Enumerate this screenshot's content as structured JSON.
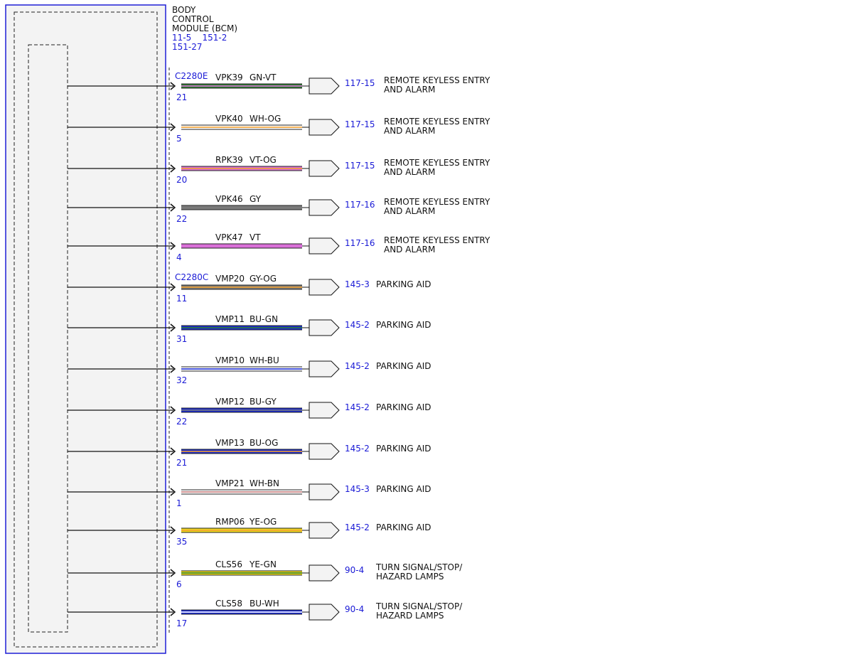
{
  "module": {
    "title_lines": [
      "BODY",
      "CONTROL",
      "MODULE (BCM)"
    ],
    "refs": [
      "11-5    151-2",
      "151-27"
    ]
  },
  "colors": {
    "frame": "#1f1fd6",
    "text": "#111111",
    "ref": "#1a1ad6",
    "GN": "#2e7d32",
    "VT": "#d96fd8",
    "WH": "#ffffff",
    "OG": "#f0a030",
    "GY": "#7a7a7a",
    "BU": "#1a2bd0",
    "BN": "#c47a7a",
    "YE": "#f0dc20"
  },
  "circuits": [
    {
      "connector": "C2280E",
      "pin": "21",
      "circuit": "VPK39",
      "wire_color": "GN-VT",
      "ref": "117-15",
      "dest": [
        "REMOTE KEYLESS ENTRY",
        "AND ALARM"
      ]
    },
    {
      "connector": "",
      "pin": "5",
      "circuit": "VPK40",
      "wire_color": "WH-OG",
      "ref": "117-15",
      "dest": [
        "REMOTE KEYLESS ENTRY",
        "AND ALARM"
      ]
    },
    {
      "connector": "",
      "pin": "20",
      "circuit": "RPK39",
      "wire_color": "VT-OG",
      "ref": "117-15",
      "dest": [
        "REMOTE KEYLESS ENTRY",
        "AND ALARM"
      ]
    },
    {
      "connector": "",
      "pin": "22",
      "circuit": "VPK46",
      "wire_color": "GY",
      "ref": "117-16",
      "dest": [
        "REMOTE KEYLESS ENTRY",
        "AND ALARM"
      ]
    },
    {
      "connector": "",
      "pin": "4",
      "circuit": "VPK47",
      "wire_color": "VT",
      "ref": "117-16",
      "dest": [
        "REMOTE KEYLESS ENTRY",
        "AND ALARM"
      ]
    },
    {
      "connector": "C2280C",
      "pin": "11",
      "circuit": "VMP20",
      "wire_color": "GY-OG",
      "ref": "145-3",
      "dest": [
        "PARKING AID"
      ]
    },
    {
      "connector": "",
      "pin": "31",
      "circuit": "VMP11",
      "wire_color": "BU-GN",
      "ref": "145-2",
      "dest": [
        "PARKING AID"
      ]
    },
    {
      "connector": "",
      "pin": "32",
      "circuit": "VMP10",
      "wire_color": "WH-BU",
      "ref": "145-2",
      "dest": [
        "PARKING AID"
      ]
    },
    {
      "connector": "",
      "pin": "22",
      "circuit": "VMP12",
      "wire_color": "BU-GY",
      "ref": "145-2",
      "dest": [
        "PARKING AID"
      ]
    },
    {
      "connector": "",
      "pin": "21",
      "circuit": "VMP13",
      "wire_color": "BU-OG",
      "ref": "145-2",
      "dest": [
        "PARKING AID"
      ]
    },
    {
      "connector": "",
      "pin": "1",
      "circuit": "VMP21",
      "wire_color": "WH-BN",
      "ref": "145-3",
      "dest": [
        "PARKING AID"
      ]
    },
    {
      "connector": "",
      "pin": "35",
      "circuit": "RMP06",
      "wire_color": "YE-OG",
      "ref": "145-2",
      "dest": [
        "PARKING AID"
      ]
    },
    {
      "connector": "",
      "pin": "6",
      "circuit": "CLS56",
      "wire_color": "YE-GN",
      "ref": "90-4",
      "dest": [
        "TURN SIGNAL/STOP/",
        "HAZARD LAMPS"
      ]
    },
    {
      "connector": "",
      "pin": "17",
      "circuit": "CLS58",
      "wire_color": "BU-WH",
      "ref": "90-4",
      "dest": [
        "TURN SIGNAL/STOP/",
        "HAZARD LAMPS"
      ]
    }
  ]
}
